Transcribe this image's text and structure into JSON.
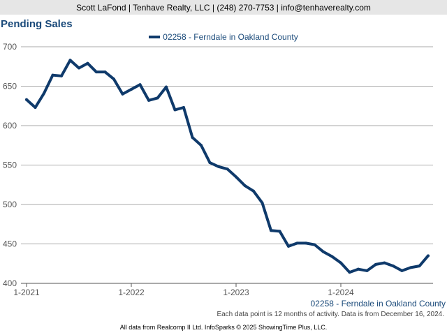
{
  "banner": {
    "text": "Scott LaFond | Tenhave Realty, LLC | (248) 270-7753 | info@tenhaverealty.com"
  },
  "chart_data": {
    "type": "line",
    "title": "Pending Sales",
    "xlabel": "",
    "ylabel": "",
    "ylim": [
      400,
      700
    ],
    "yticks": [
      400,
      450,
      500,
      550,
      600,
      650,
      700
    ],
    "xtick_labels": [
      "1-2021",
      "1-2022",
      "1-2023",
      "1-2024"
    ],
    "x": [
      "1-2021",
      "2-2021",
      "3-2021",
      "4-2021",
      "5-2021",
      "6-2021",
      "7-2021",
      "8-2021",
      "9-2021",
      "10-2021",
      "11-2021",
      "12-2021",
      "1-2022",
      "2-2022",
      "3-2022",
      "4-2022",
      "5-2022",
      "6-2022",
      "7-2022",
      "8-2022",
      "9-2022",
      "10-2022",
      "11-2022",
      "12-2022",
      "1-2023",
      "2-2023",
      "3-2023",
      "4-2023",
      "5-2023",
      "6-2023",
      "7-2023",
      "8-2023",
      "9-2023",
      "10-2023",
      "11-2023",
      "12-2023",
      "1-2024",
      "2-2024",
      "3-2024",
      "4-2024",
      "5-2024",
      "6-2024",
      "7-2024",
      "8-2024",
      "9-2024",
      "10-2024",
      "11-2024"
    ],
    "grid": true,
    "legend_position": "top-center",
    "series": [
      {
        "name": "02258 - Ferndale in Oakland County",
        "color": "#0f3a6b",
        "values": [
          633,
          623,
          641,
          664,
          663,
          683,
          673,
          679,
          668,
          668,
          659,
          640,
          646,
          652,
          632,
          635,
          649,
          620,
          623,
          585,
          575,
          553,
          548,
          545,
          535,
          524,
          517,
          502,
          467,
          466,
          447,
          451,
          451,
          449,
          440,
          434,
          426,
          414,
          418,
          416,
          424,
          426,
          422,
          416,
          420,
          422,
          435
        ]
      }
    ]
  },
  "series_caption": "02258 - Ferndale in Oakland County",
  "footnote": "Each data point is 12 months of activity. Data is from December 16, 2024.",
  "credits": "All data from Realcomp II Ltd. InfoSparks © 2025 ShowingTime Plus, LLC."
}
